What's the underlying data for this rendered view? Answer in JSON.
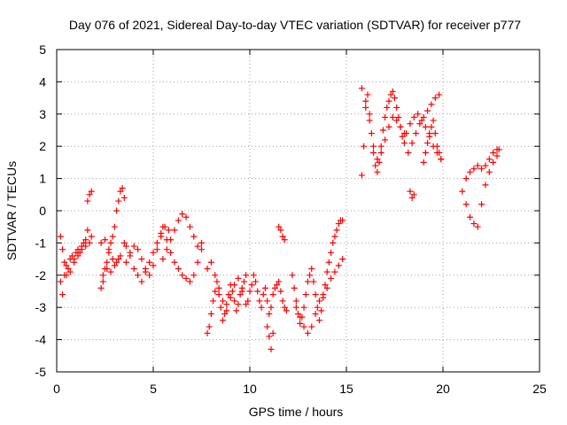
{
  "chart_data": {
    "type": "scatter",
    "title": "Day 076 of 2021, Sidereal Day-to-day VTEC variation (SDTVAR) for receiver p777",
    "xlabel": "GPS time / hours",
    "ylabel": "SDTVAR / TECUs",
    "xlim": [
      0,
      25
    ],
    "ylim": [
      -5,
      5
    ],
    "xticks": [
      "0",
      "5",
      "10",
      "15",
      "20",
      "25"
    ],
    "yticks": [
      "-5",
      "-4",
      "-3",
      "-2",
      "-1",
      "0",
      "1",
      "2",
      "3",
      "4",
      "5"
    ],
    "grid": true,
    "marker": "+",
    "series": [
      {
        "name": "p777",
        "color": "#ff0000",
        "x": [
          0.2,
          0.3,
          0.4,
          0.5,
          0.6,
          0.7,
          0.8,
          0.9,
          1.0,
          1.1,
          1.2,
          1.3,
          1.4,
          1.5,
          1.6,
          1.7,
          1.8,
          0.2,
          0.3,
          0.4,
          0.5,
          0.7,
          0.9,
          1.1,
          1.3,
          1.5,
          1.6,
          1.7,
          1.8,
          2.3,
          2.4,
          2.5,
          2.6,
          2.7,
          2.8,
          2.9,
          3.0,
          3.1,
          3.2,
          3.3,
          3.4,
          3.5,
          2.3,
          2.5,
          2.7,
          2.9,
          3.1,
          3.3,
          3.5,
          2.4,
          2.6,
          2.8,
          3.0,
          3.2,
          3.6,
          3.8,
          4.0,
          4.2,
          4.4,
          4.6,
          4.8,
          5.0,
          5.2,
          5.4,
          5.6,
          5.8,
          3.6,
          3.8,
          4.0,
          4.2,
          4.4,
          4.6,
          4.8,
          5.0,
          5.2,
          5.4,
          5.5,
          5.7,
          5.9,
          6.1,
          6.3,
          6.5,
          6.7,
          6.9,
          7.1,
          7.3,
          7.5,
          5.5,
          5.7,
          5.9,
          6.1,
          6.3,
          6.5,
          6.7,
          6.9,
          7.1,
          7.3,
          7.5,
          7.8,
          7.9,
          8.0,
          8.1,
          8.2,
          8.3,
          8.4,
          8.5,
          8.6,
          8.7,
          8.8,
          8.9,
          9.0,
          9.1,
          9.2,
          9.3,
          9.4,
          9.5,
          9.6,
          9.7,
          9.8,
          7.8,
          8.0,
          8.2,
          8.4,
          8.6,
          8.8,
          9.0,
          9.2,
          9.4,
          9.6,
          9.8,
          9.9,
          10.0,
          10.1,
          10.2,
          10.3,
          10.4,
          10.5,
          10.6,
          10.7,
          10.8,
          10.9,
          11.0,
          11.1,
          11.2,
          11.3,
          11.4,
          11.5,
          11.6,
          11.7,
          11.8,
          11.9,
          10.9,
          11.0,
          11.1,
          11.2,
          11.5,
          11.6,
          11.7,
          11.8,
          12.2,
          12.3,
          12.4,
          12.5,
          12.6,
          12.7,
          12.8,
          12.9,
          13.0,
          13.1,
          13.2,
          13.3,
          13.4,
          13.5,
          13.6,
          13.7,
          13.8,
          13.9,
          14.0,
          14.1,
          14.2,
          14.3,
          14.4,
          14.5,
          14.6,
          14.7,
          14.8,
          12.4,
          12.6,
          12.8,
          13.0,
          13.2,
          13.4,
          13.6,
          13.8,
          14.0,
          14.2,
          14.4,
          14.6,
          14.8,
          15.8,
          15.9,
          16.0,
          16.1,
          16.2,
          16.3,
          16.4,
          16.5,
          16.6,
          16.7,
          16.8,
          16.9,
          17.0,
          17.1,
          17.2,
          17.3,
          17.4,
          17.5,
          17.6,
          17.7,
          17.8,
          17.9,
          18.0,
          15.8,
          16.0,
          16.2,
          16.4,
          16.6,
          16.8,
          17.0,
          17.2,
          17.4,
          17.6,
          17.8,
          18.0,
          18.1,
          18.3,
          18.5,
          18.7,
          18.9,
          19.1,
          19.3,
          19.5,
          19.7,
          19.9,
          18.2,
          18.4,
          18.6,
          18.8,
          19.0,
          19.2,
          19.4,
          19.6,
          19.8,
          18.3,
          18.4,
          18.5,
          19.0,
          19.1,
          19.2,
          19.3,
          19.4,
          19.5,
          19.6,
          19.7,
          19.8,
          19.9,
          21.0,
          21.2,
          21.4,
          21.6,
          21.8,
          22.0,
          22.2,
          22.4,
          22.6,
          22.8,
          22.9,
          21.2,
          21.4,
          21.6,
          21.8,
          22.0,
          22.2,
          22.4,
          22.6,
          22.8
        ],
        "y": [
          -2.2,
          -2.6,
          -2.0,
          -1.7,
          -1.8,
          -1.5,
          -1.4,
          -1.6,
          -1.3,
          -1.2,
          -1.3,
          -1.1,
          -1.0,
          -0.9,
          0.3,
          0.5,
          0.6,
          -0.8,
          -1.2,
          -1.6,
          -2.0,
          -1.9,
          -1.5,
          -1.4,
          -1.2,
          -1.1,
          -0.6,
          -1.0,
          -0.8,
          -2.4,
          -2.0,
          -1.8,
          -1.6,
          -1.3,
          -1.0,
          -0.8,
          -0.5,
          0.0,
          0.3,
          0.6,
          0.7,
          0.4,
          -1.0,
          -0.9,
          -1.2,
          -1.5,
          -1.6,
          -1.4,
          -1.0,
          -2.2,
          -1.8,
          -1.9,
          -1.7,
          -1.5,
          -1.1,
          -1.4,
          -1.8,
          -2.0,
          -2.2,
          -1.9,
          -1.6,
          -1.3,
          -1.0,
          -0.8,
          -0.5,
          -0.6,
          -1.6,
          -1.3,
          -1.1,
          -1.2,
          -1.5,
          -1.8,
          -2.0,
          -1.7,
          -1.2,
          -0.7,
          -0.5,
          -0.9,
          -1.3,
          -1.6,
          -1.8,
          -2.0,
          -2.1,
          -2.2,
          -2.0,
          -1.6,
          -1.2,
          -1.5,
          -1.2,
          -0.9,
          -0.6,
          -0.3,
          -0.1,
          -0.2,
          -0.5,
          -0.8,
          -1.1,
          -1.0,
          -3.8,
          -3.6,
          -3.2,
          -2.8,
          -2.5,
          -2.2,
          -2.6,
          -3.0,
          -3.4,
          -3.2,
          -2.9,
          -2.6,
          -2.3,
          -2.5,
          -2.8,
          -3.1,
          -2.9,
          -2.6,
          -2.4,
          -2.2,
          -2.0,
          -1.8,
          -1.6,
          -2.0,
          -2.4,
          -2.8,
          -3.1,
          -2.7,
          -2.3,
          -2.1,
          -2.5,
          -2.9,
          -2.8,
          -2.5,
          -2.3,
          -2.0,
          -2.2,
          -2.5,
          -2.8,
          -3.0,
          -2.6,
          -2.4,
          -2.8,
          -3.2,
          -3.0,
          -2.6,
          -2.4,
          -2.3,
          -2.2,
          -2.5,
          -2.8,
          -3.0,
          -3.1,
          -3.6,
          -3.9,
          -4.3,
          -3.8,
          -0.5,
          -0.6,
          -0.8,
          -0.9,
          -2.0,
          -2.4,
          -2.8,
          -3.2,
          -3.5,
          -3.3,
          -3.0,
          -2.6,
          -2.2,
          -2.0,
          -1.8,
          -2.2,
          -2.6,
          -3.0,
          -3.4,
          -3.1,
          -2.7,
          -2.3,
          -1.9,
          -1.6,
          -1.3,
          -1.0,
          -0.8,
          -0.6,
          -0.4,
          -0.3,
          -0.3,
          -3.0,
          -3.3,
          -3.6,
          -3.8,
          -3.6,
          -3.2,
          -2.8,
          -2.6,
          -2.4,
          -2.1,
          -1.9,
          -1.7,
          -1.5,
          1.1,
          2.0,
          3.2,
          3.6,
          3.0,
          2.4,
          1.8,
          1.4,
          1.2,
          1.5,
          2.0,
          2.5,
          2.9,
          3.2,
          3.4,
          3.6,
          3.7,
          3.5,
          3.2,
          2.9,
          2.6,
          2.3,
          2.1,
          3.8,
          3.4,
          2.8,
          2.0,
          1.6,
          1.8,
          2.2,
          2.6,
          2.9,
          2.8,
          2.6,
          2.4,
          2.4,
          2.7,
          2.9,
          3.0,
          2.8,
          2.6,
          2.3,
          2.0,
          1.8,
          1.6,
          1.8,
          2.1,
          2.4,
          2.7,
          2.9,
          3.1,
          3.3,
          3.5,
          3.6,
          0.6,
          0.4,
          0.5,
          1.5,
          1.8,
          2.1,
          2.4,
          2.6,
          2.8,
          2.4,
          2.0,
          1.8,
          1.6,
          0.6,
          0.2,
          -0.2,
          -0.4,
          -0.5,
          0.2,
          0.8,
          1.2,
          1.5,
          1.7,
          1.9,
          1.0,
          1.2,
          1.3,
          1.4,
          1.3,
          1.4,
          1.6,
          1.8,
          1.9
        ]
      }
    ]
  }
}
